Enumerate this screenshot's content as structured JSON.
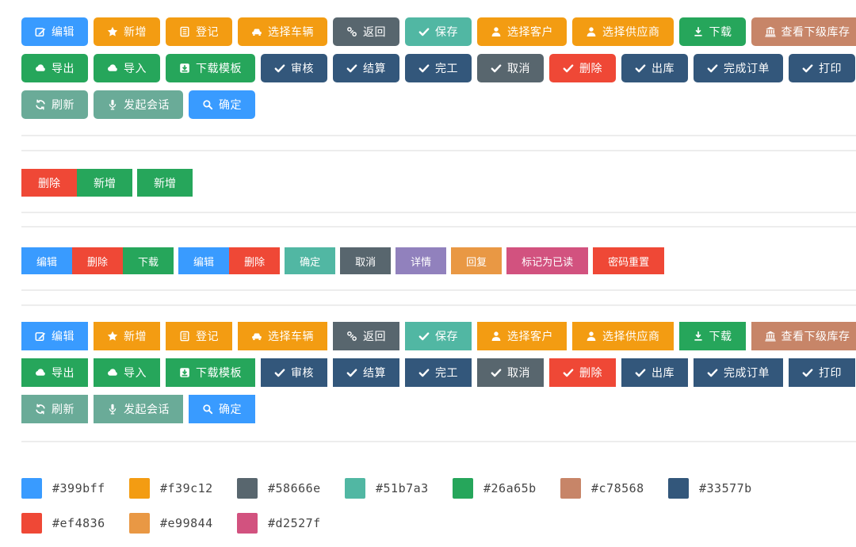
{
  "toolbar": {
    "rows": [
      [
        {
          "name": "edit",
          "label": "编辑",
          "icon": "edit-icon",
          "color": "#399bff"
        },
        {
          "name": "add",
          "label": "新增",
          "icon": "star-icon",
          "color": "#f39c12"
        },
        {
          "name": "register",
          "label": "登记",
          "icon": "form-icon",
          "color": "#f39c12"
        },
        {
          "name": "select-vehicle",
          "label": "选择车辆",
          "icon": "car-icon",
          "color": "#f39c12"
        },
        {
          "name": "back",
          "label": "返回",
          "icon": "link-icon",
          "color": "#58666e"
        },
        {
          "name": "save",
          "label": "保存",
          "icon": "check-icon",
          "color": "#51b7a3"
        },
        {
          "name": "select-customer",
          "label": "选择客户",
          "icon": "user-icon",
          "color": "#f39c12"
        },
        {
          "name": "select-supplier",
          "label": "选择供应商",
          "icon": "user-icon",
          "color": "#f39c12"
        },
        {
          "name": "download",
          "label": "下载",
          "icon": "download-icon",
          "color": "#26a65b"
        },
        {
          "name": "view-sub-inventory",
          "label": "查看下级库存",
          "icon": "bank-icon",
          "color": "#c78568"
        }
      ],
      [
        {
          "name": "export",
          "label": "导出",
          "icon": "cloud-icon",
          "color": "#26a65b"
        },
        {
          "name": "import",
          "label": "导入",
          "icon": "cloud-icon",
          "color": "#26a65b"
        },
        {
          "name": "download-template",
          "label": "下载模板",
          "icon": "download-box-icon",
          "color": "#26a65b"
        },
        {
          "name": "audit",
          "label": "审核",
          "icon": "check-icon",
          "color": "#33577b"
        },
        {
          "name": "settle",
          "label": "结算",
          "icon": "check-icon",
          "color": "#33577b"
        },
        {
          "name": "finish",
          "label": "完工",
          "icon": "check-icon",
          "color": "#33577b"
        },
        {
          "name": "cancel",
          "label": "取消",
          "icon": "check-icon",
          "color": "#58666e"
        },
        {
          "name": "delete",
          "label": "删除",
          "icon": "check-icon",
          "color": "#ef4836"
        },
        {
          "name": "stock-out",
          "label": "出库",
          "icon": "check-icon",
          "color": "#33577b"
        },
        {
          "name": "complete-order",
          "label": "完成订单",
          "icon": "check-icon",
          "color": "#33577b"
        },
        {
          "name": "print",
          "label": "打印",
          "icon": "check-icon",
          "color": "#33577b"
        }
      ],
      [
        {
          "name": "refresh",
          "label": "刷新",
          "icon": "refresh-icon",
          "color": "#6aab98"
        },
        {
          "name": "start-conversation",
          "label": "发起会话",
          "icon": "microphone-icon",
          "color": "#6aab98"
        },
        {
          "name": "confirm",
          "label": "确定",
          "icon": "search-icon",
          "color": "#399bff"
        }
      ]
    ]
  },
  "mini_section": {
    "groups": [
      [
        {
          "name": "delete",
          "label": "删除",
          "color": "#ef4836"
        },
        {
          "name": "add",
          "label": "新增",
          "color": "#26a65b"
        }
      ],
      [
        {
          "name": "add",
          "label": "新增",
          "color": "#26a65b"
        }
      ]
    ]
  },
  "small_section": {
    "groups": [
      [
        {
          "name": "edit",
          "label": "编辑",
          "color": "#399bff"
        },
        {
          "name": "delete",
          "label": "删除",
          "color": "#ef4836"
        },
        {
          "name": "download",
          "label": "下载",
          "color": "#26a65b"
        }
      ],
      [
        {
          "name": "edit",
          "label": "编辑",
          "color": "#399bff"
        },
        {
          "name": "delete",
          "label": "删除",
          "color": "#ef4836"
        }
      ],
      [
        {
          "name": "confirm",
          "label": "确定",
          "color": "#51b7a3"
        }
      ],
      [
        {
          "name": "cancel",
          "label": "取消",
          "color": "#58666e"
        }
      ],
      [
        {
          "name": "details",
          "label": "详情",
          "color": "#9181bd"
        }
      ],
      [
        {
          "name": "reply",
          "label": "回复",
          "color": "#e99844"
        }
      ],
      [
        {
          "name": "mark-as-read",
          "label": "标记为已读",
          "color": "#d2527f"
        }
      ],
      [
        {
          "name": "password-reset",
          "label": "密码重置",
          "color": "#ef4836"
        }
      ]
    ]
  },
  "palette": {
    "rows": [
      [
        {
          "hex": "#399bff"
        },
        {
          "hex": "#f39c12"
        },
        {
          "hex": "#58666e"
        },
        {
          "hex": "#51b7a3"
        },
        {
          "hex": "#26a65b"
        },
        {
          "hex": "#c78568"
        },
        {
          "hex": "#33577b"
        }
      ],
      [
        {
          "hex": "#ef4836"
        },
        {
          "hex": "#e99844"
        },
        {
          "hex": "#d2527f"
        }
      ]
    ]
  }
}
